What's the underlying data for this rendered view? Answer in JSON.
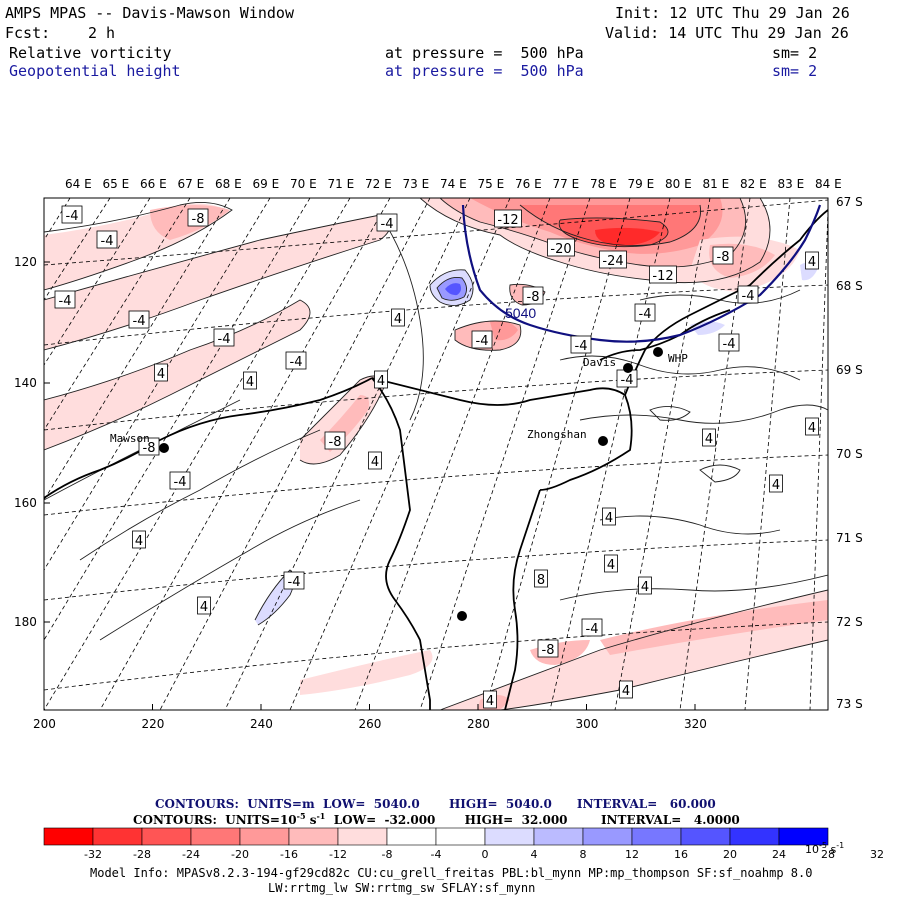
{
  "header": {
    "title": "AMPS MPAS -- Davis-Mawson Window",
    "init": "Init: 12 UTC Thu 29 Jan 26",
    "fcst_label": "Fcst:",
    "fcst_value": "2 h",
    "valid": "Valid: 14 UTC Thu 29 Jan 26",
    "field1_name": "Relative vorticity",
    "field1_level": "at pressure =  500 hPa",
    "field1_sm": "sm= 2",
    "field2_name": "Geopotential height",
    "field2_level": "at pressure =  500 hPa",
    "field2_sm": "sm= 2"
  },
  "map": {
    "top_lon_labels": [
      "64 E",
      "65 E",
      "66 E",
      "67 E",
      "68 E",
      "69 E",
      "70 E",
      "71 E",
      "72 E",
      "73 E",
      "74 E",
      "75 E",
      "76 E",
      "77 E",
      "78 E",
      "79 E",
      "80 E",
      "81 E",
      "82 E",
      "83 E",
      "84 E"
    ],
    "right_lat_labels": [
      "67 S",
      "68 S",
      "69 S",
      "70 S",
      "71 S",
      "72 S",
      "73 S"
    ],
    "left_y_ticks": [
      "120",
      "140",
      "160",
      "180"
    ],
    "bottom_x_ticks": [
      "200",
      "220",
      "240",
      "260",
      "280",
      "300",
      "320"
    ],
    "stations": [
      {
        "name": "Mawson",
        "label": "Mawson"
      },
      {
        "name": "Davis",
        "label": "Davis"
      },
      {
        "name": "WHP",
        "label": "WHP"
      },
      {
        "name": "Zhongshan",
        "label": "Zhongshan"
      },
      {
        "name": "unnamed",
        "label": ""
      }
    ],
    "contour_labels": [
      "-4",
      "-4",
      "-8",
      "-4",
      "-4",
      "-12",
      "-20",
      "-24",
      "-12",
      "-8",
      "4",
      "-4",
      "-8",
      "-4",
      "-4",
      "-4",
      "4",
      "-4",
      "-4",
      "-4",
      "4",
      "-4",
      "4",
      "4",
      "-8",
      "-8",
      "-4",
      "4",
      "-4",
      "4",
      "4",
      "4",
      "4",
      "4",
      "4",
      "4",
      "4",
      "-4",
      "-8",
      "-4",
      "8",
      "4",
      "4"
    ],
    "height_label": "5040",
    "colors": {
      "red_strong": "#ff0000",
      "blue_strong": "#0000ff",
      "height_contour": "#101080"
    }
  },
  "footer": {
    "contours1": "CONTOURS:  UNITS=m  LOW=  5040.0       HIGH=  5040.0      INTERVAL=   60.000",
    "contours2": "CONTOURS:  UNITS=10",
    "contours2_exp": "-5",
    "contours2_rest": " s",
    "contours2_rest_exp": "-1",
    "contours2_tail": "  LOW=  -32.000       HIGH=  32.000        INTERVAL=   4.0000",
    "colorbar_labels": [
      "-32",
      "-28",
      "-24",
      "-20",
      "-16",
      "-12",
      "-8",
      "-4",
      "0",
      "4",
      "8",
      "12",
      "16",
      "20",
      "24",
      "28",
      "32"
    ],
    "colorbar_unit": "10",
    "colorbar_unit_exp": "-5",
    "colorbar_unit_s": " s",
    "colorbar_unit_s_exp": "-1",
    "colorbar_colors": [
      "#ff0000",
      "#ff3333",
      "#ff5555",
      "#ff7777",
      "#ff9999",
      "#ffbbbb",
      "#ffdddd",
      "#ffffff",
      "#ffffff",
      "#dcdcff",
      "#bbbbff",
      "#9999ff",
      "#7777ff",
      "#5555ff",
      "#3333ff",
      "#0000ff"
    ],
    "model_info": "Model Info: MPASv8.2.3-194-gf29cd82c CU:cu_grell_freitas PBL:bl_mynn MP:mp_thompson SF:sf_noahmp 8.0",
    "model_info2": "LW:rrtmg_lw SW:rrtmg_sw SFLAY:sf_mynn"
  }
}
